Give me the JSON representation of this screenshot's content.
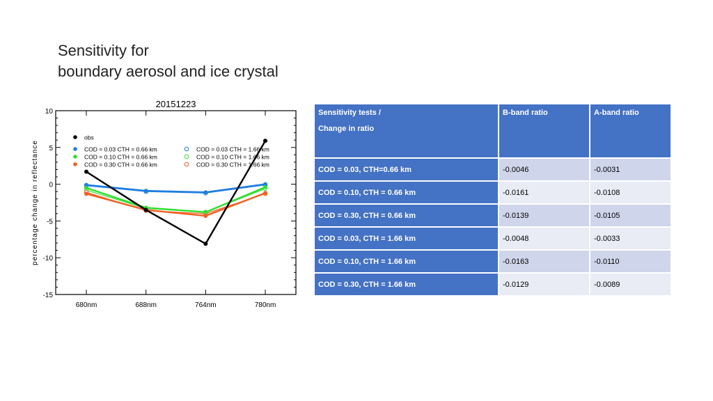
{
  "title": {
    "line1": "Sensitivity for",
    "line2": "boundary aerosol and ice crystal"
  },
  "chart_data": {
    "type": "line",
    "title": "20151223",
    "xlabel": "",
    "ylabel": "percentage change in reflectance",
    "categories": [
      "680nm",
      "688nm",
      "764nm",
      "780nm"
    ],
    "ylim": [
      -15,
      10
    ],
    "yticks": [
      10,
      5,
      0,
      -5,
      -10,
      -15
    ],
    "grid": false,
    "legend_placement": "top-left",
    "series": [
      {
        "name": "obs",
        "color": "#000000",
        "marker": "filled",
        "values": [
          1.7,
          -3.5,
          -8.1,
          5.9
        ]
      },
      {
        "name": "COD = 0.03  CTH = 0.66 km",
        "color": "#1f7ee0",
        "marker": "filled",
        "values": [
          -0.1,
          -0.9,
          -1.1,
          0.0
        ]
      },
      {
        "name": "COD = 0.10  CTH = 0.66 km",
        "color": "#33dd33",
        "marker": "filled",
        "values": [
          -0.5,
          -3.2,
          -3.8,
          -0.4
        ]
      },
      {
        "name": "COD = 0.30  CTH = 0.66 km",
        "color": "#f06020",
        "marker": "filled",
        "values": [
          -1.3,
          -3.5,
          -4.3,
          -1.2
        ]
      },
      {
        "name": "COD = 0.03  CTH = 1.66 km",
        "color": "#1f7ee0",
        "marker": "open",
        "values": [
          -0.2,
          -1.0,
          -1.2,
          -0.1
        ]
      },
      {
        "name": "COD = 0.10  CTH = 1.66 km",
        "color": "#33dd33",
        "marker": "open",
        "values": [
          -0.8,
          -3.3,
          -3.8,
          -0.6
        ]
      },
      {
        "name": "COD = 0.30  CTH = 1.66 km",
        "color": "#f06020",
        "marker": "open",
        "values": [
          -1.1,
          -3.6,
          -4.0,
          -1.3
        ]
      }
    ]
  },
  "table": {
    "headers": {
      "tests_line1": "Sensitivity tests /",
      "tests_line2": "Change in ratio",
      "b_band": "B-band ratio",
      "a_band": "A-band ratio"
    },
    "rows": [
      {
        "test": "COD = 0.03,  CTH=0.66 km",
        "b": "-0.0046",
        "a": "-0.0031"
      },
      {
        "test": "COD = 0.10,  CTH = 0.66 km",
        "b": "-0.0161",
        "a": "-0.0108"
      },
      {
        "test": "COD = 0.30,  CTH = 0.66 km",
        "b": "-0.0139",
        "a": "-0.0105"
      },
      {
        "test": "COD = 0.03,  CTH = 1.66 km",
        "b": "-0.0048",
        "a": "-0.0033"
      },
      {
        "test": "COD = 0.10,  CTH = 1.66 km",
        "b": "-0.0163",
        "a": "-0.0110"
      },
      {
        "test": "COD = 0.30,  CTH = 1.66 km",
        "b": "-0.0129",
        "a": "-0.0089"
      }
    ]
  }
}
